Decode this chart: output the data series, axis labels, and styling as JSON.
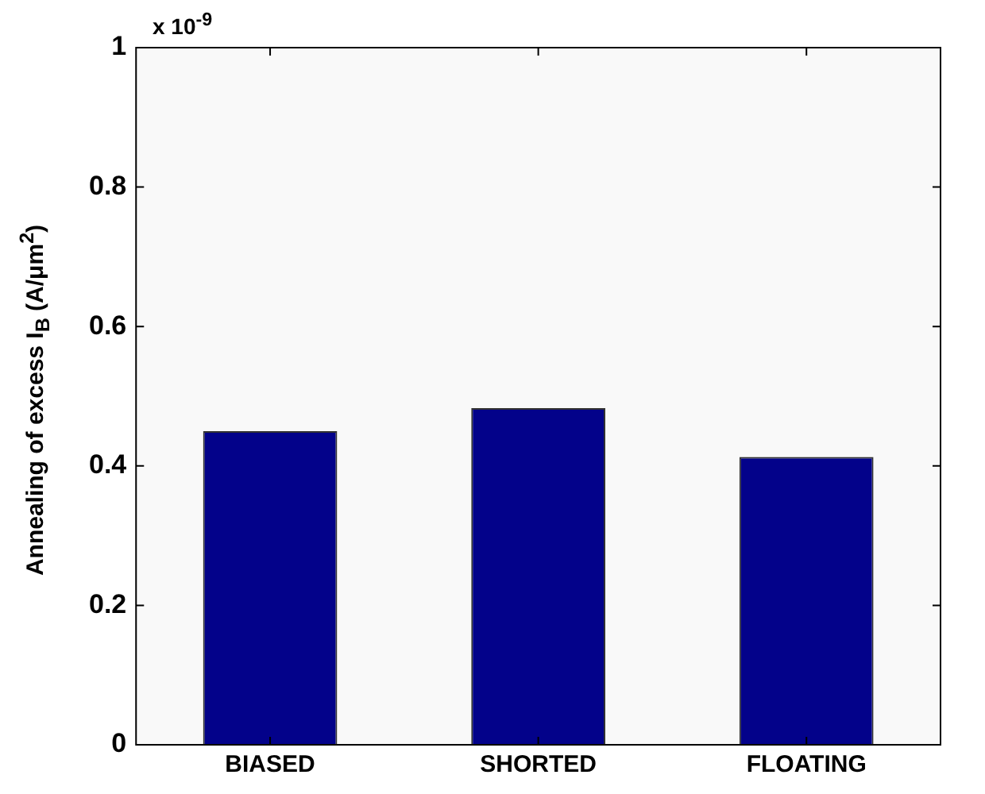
{
  "chart_data": {
    "type": "bar",
    "ylabel": "Annealing of excess I$_{B}$ (A/μm$^{2}$)",
    "categories": [
      "BIASED",
      "SHORTED",
      "FLOATING"
    ],
    "values": [
      0.45,
      0.483,
      0.413
    ],
    "color": "#03028a",
    "ylim": [
      0,
      1
    ],
    "yticks": [
      0,
      0.2,
      0.4,
      0.6,
      0.8,
      1
    ],
    "grid": false,
    "legend": false,
    "annotations": [
      "x 10$^{-9}$"
    ]
  }
}
